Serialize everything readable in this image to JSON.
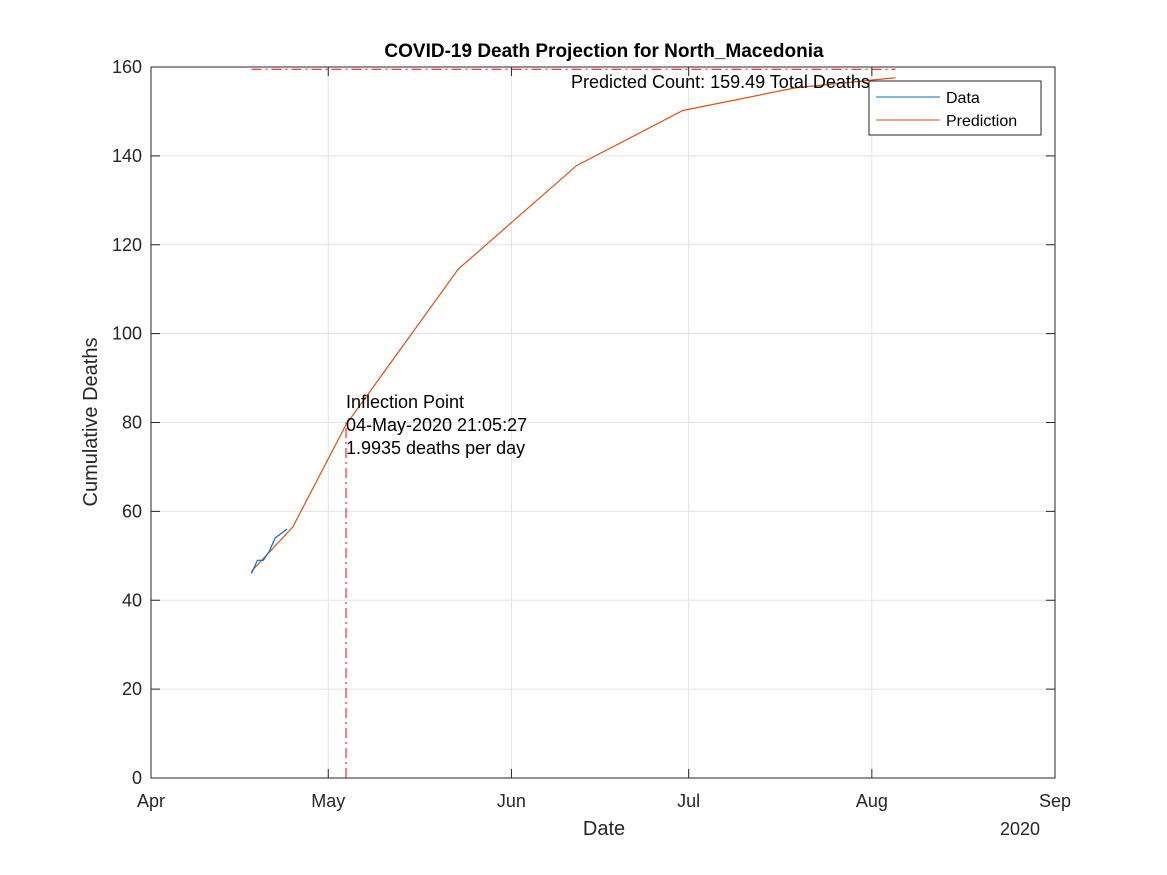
{
  "chart_data": {
    "type": "line",
    "title": "COVID-19 Death Projection for North_Macedonia",
    "xlabel": "Date",
    "ylabel": "Cumulative Deaths",
    "x_axis_year": "2020",
    "xlim": [
      "2020-04-01",
      "2020-09-01"
    ],
    "ylim": [
      0,
      160
    ],
    "x_ticks": [
      {
        "date": "2020-04-01",
        "label": "Apr"
      },
      {
        "date": "2020-05-01",
        "label": "May"
      },
      {
        "date": "2020-06-01",
        "label": "Jun"
      },
      {
        "date": "2020-07-01",
        "label": "Jul"
      },
      {
        "date": "2020-08-01",
        "label": "Aug"
      },
      {
        "date": "2020-09-01",
        "label": "Sep"
      }
    ],
    "y_ticks": [
      0,
      20,
      40,
      60,
      80,
      100,
      120,
      140,
      160
    ],
    "grid": true,
    "legend_position": "top-right",
    "series": [
      {
        "name": "Data",
        "color": "#0072BD",
        "points": [
          {
            "x": "2020-04-18",
            "y": 46
          },
          {
            "x": "2020-04-19",
            "y": 49
          },
          {
            "x": "2020-04-20",
            "y": 49
          },
          {
            "x": "2020-04-21",
            "y": 51
          },
          {
            "x": "2020-04-22",
            "y": 54
          },
          {
            "x": "2020-04-23",
            "y": 55
          },
          {
            "x": "2020-04-24",
            "y": 56
          }
        ]
      },
      {
        "name": "Prediction",
        "color": "#D95319",
        "points": [
          {
            "x": "2020-04-18",
            "y": 46.5
          },
          {
            "x": "2020-04-25",
            "y": 56.5
          },
          {
            "x": "2020-05-04",
            "y": 79.5
          },
          {
            "x": "2020-05-23",
            "y": 114.5
          },
          {
            "x": "2020-06-12",
            "y": 137.8
          },
          {
            "x": "2020-06-30",
            "y": 150.2
          },
          {
            "x": "2020-07-19",
            "y": 155.3
          },
          {
            "x": "2020-08-05",
            "y": 157.6
          }
        ]
      }
    ],
    "reference_lines": {
      "color": "#FF0000",
      "horizontal": {
        "y": 159.49,
        "x_start": "2020-04-18",
        "x_end": "2020-08-05"
      },
      "vertical": {
        "x": "2020-05-04",
        "y_start": 0,
        "y_end": 80
      }
    },
    "annotations": {
      "predicted_count": "Predicted Count: 159.49 Total Deaths",
      "inflection_lines": [
        "Inflection Point",
        "04-May-2020 21:05:27",
        "1.9935 deaths per day"
      ]
    }
  }
}
